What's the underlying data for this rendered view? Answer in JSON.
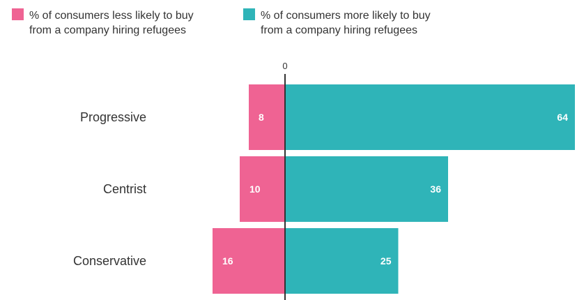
{
  "legend": [
    {
      "label": "% of consumers less likely to buy\nfrom a company hiring refugees",
      "color": "#ef6393"
    },
    {
      "label": "% of consumers more likely to buy\nfrom a company hiring refugees",
      "color": "#2fb4b8"
    }
  ],
  "chart_data": {
    "type": "bar",
    "orientation": "horizontal-diverging",
    "zero_label": "0",
    "categories": [
      "Progressive",
      "Centrist",
      "Conservative"
    ],
    "series": [
      {
        "name": "% of consumers less likely to buy from a company hiring refugees",
        "values": [
          8,
          10,
          16
        ],
        "color": "#ef6393"
      },
      {
        "name": "% of consumers more likely to buy from a company hiring refugees",
        "values": [
          64,
          36,
          25
        ],
        "color": "#2fb4b8"
      }
    ],
    "legend_position": "top-left"
  }
}
